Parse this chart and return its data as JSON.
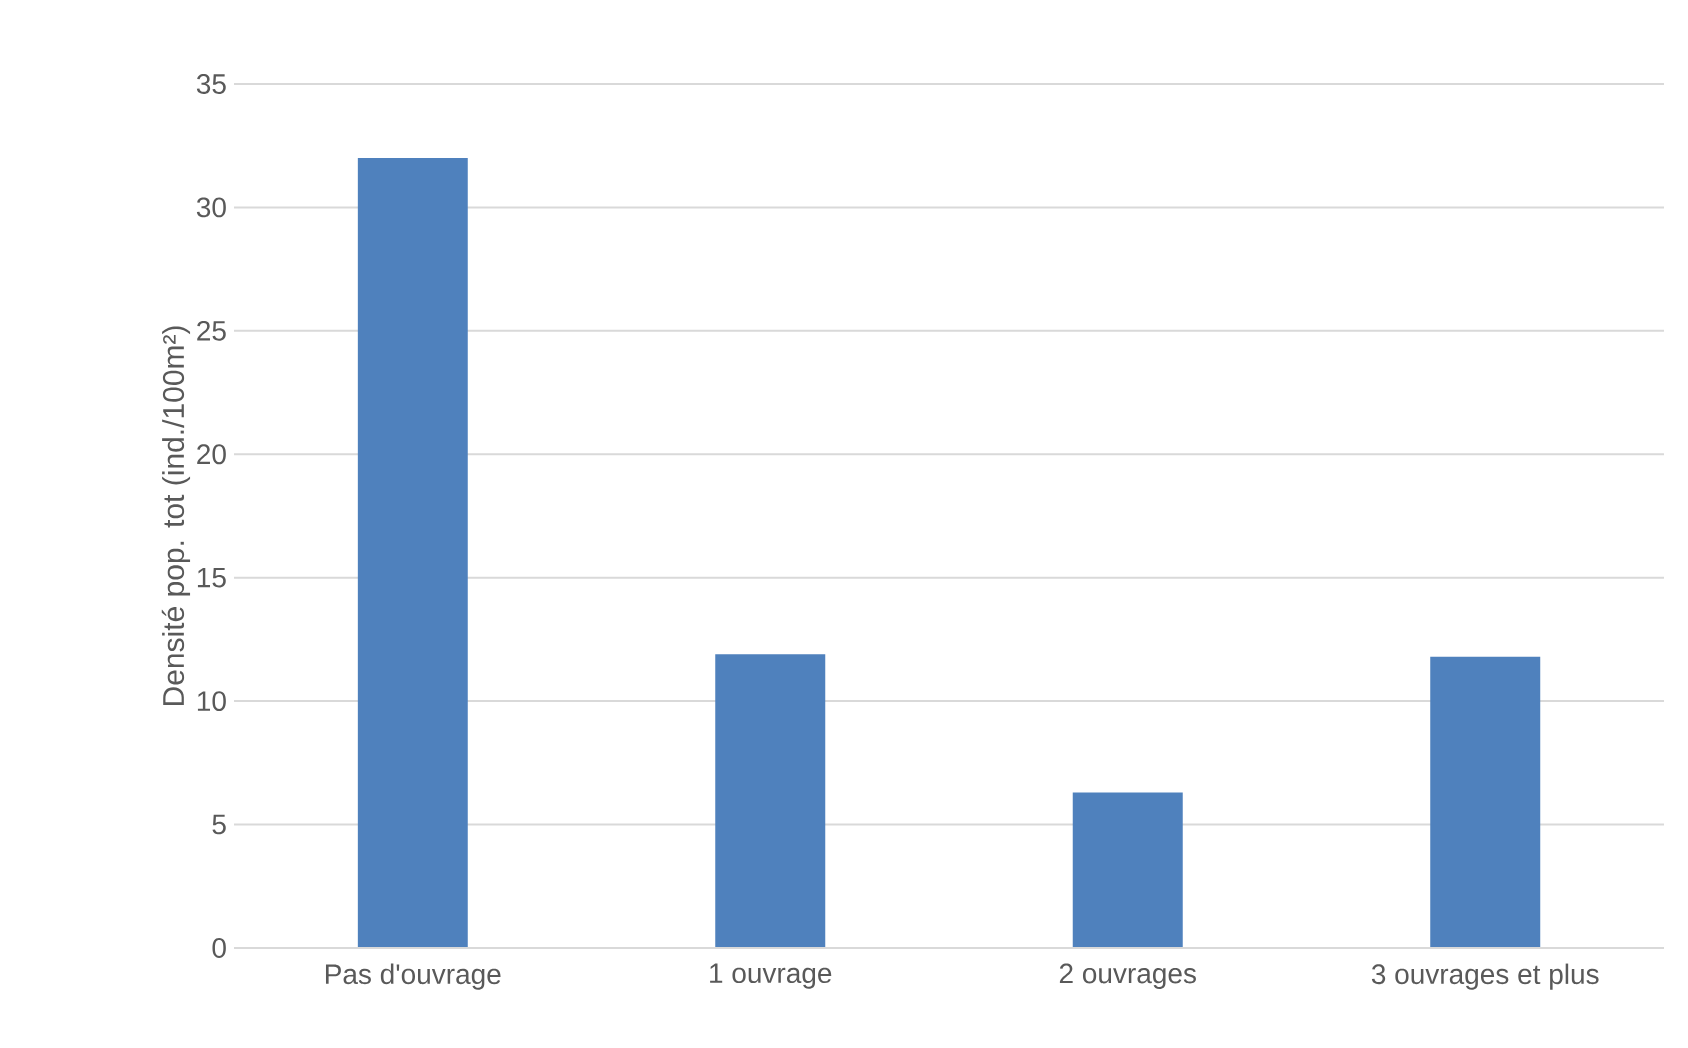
{
  "chart_data": {
    "type": "bar",
    "ylabel": "Densité pop. tot (ind./100m²)",
    "categories": [
      "Pas d'ouvrage",
      "1 ouvrage",
      "2 ouvrages",
      "3 ouvrages et plus"
    ],
    "values": [
      32,
      11.9,
      6.3,
      11.8
    ],
    "color": "#4f81bd",
    "ylim": [
      0,
      35
    ],
    "yticks": [
      0,
      5,
      10,
      15,
      20,
      25,
      30,
      35
    ],
    "grid": "y"
  }
}
